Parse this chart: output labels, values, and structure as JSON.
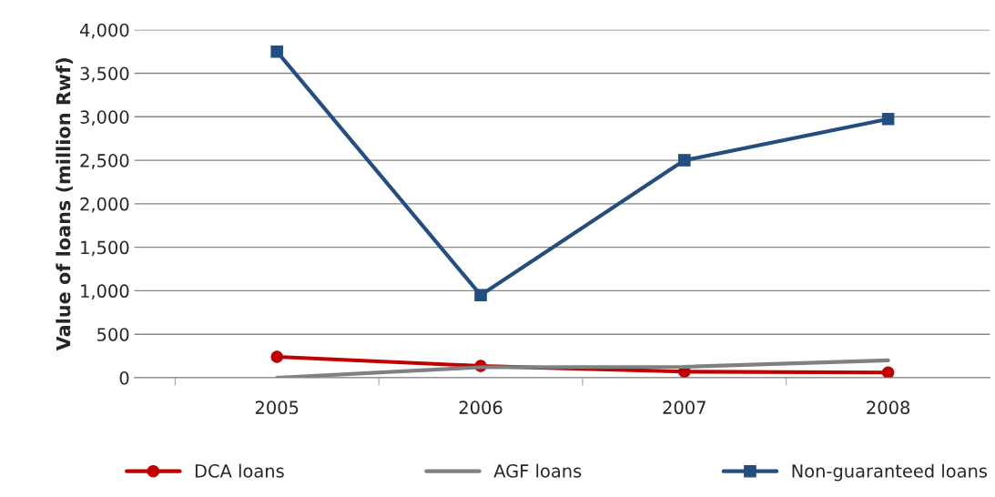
{
  "chart_data": {
    "type": "line",
    "ylabel": "Value of loans (million Rwf)",
    "categories": [
      "2005",
      "2006",
      "2007",
      "2008"
    ],
    "series": [
      {
        "name": "DCA loans",
        "color": "#c00000",
        "marker": "circle",
        "values": [
          240,
          135,
          70,
          60
        ]
      },
      {
        "name": "AGF loans",
        "color": "#808080",
        "marker": "none",
        "values": [
          0,
          120,
          125,
          200
        ]
      },
      {
        "name": "Non-guaranteed loans",
        "color": "#254e80",
        "marker": "square",
        "values": [
          3750,
          950,
          2500,
          2975
        ]
      }
    ],
    "ylim": [
      0,
      4000
    ],
    "yticks": [
      {
        "value": 0,
        "label": "0"
      },
      {
        "value": 500,
        "label": "500"
      },
      {
        "value": 1000,
        "label": "1,000"
      },
      {
        "value": 1500,
        "label": "1,500"
      },
      {
        "value": 2000,
        "label": "2,000"
      },
      {
        "value": 2500,
        "label": "2,500"
      },
      {
        "value": 3000,
        "label": "3,000"
      },
      {
        "value": 3500,
        "label": "3,500"
      },
      {
        "value": 4000,
        "label": "4,000"
      }
    ],
    "grid": "y",
    "legend": "bottom"
  }
}
